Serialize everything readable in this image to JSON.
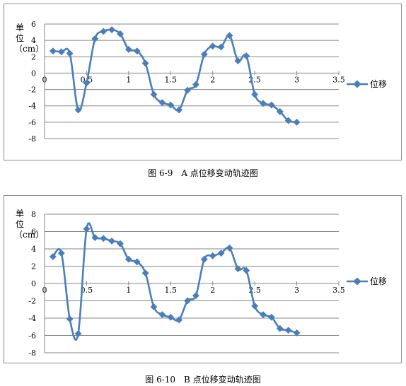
{
  "chart_data": [
    {
      "type": "line",
      "ylabel": "单位（cm）",
      "caption": "图 6-9　A 点位移变动轨迹图",
      "xlim": [
        0,
        3.5
      ],
      "ylim": [
        -8,
        6
      ],
      "xticks": [
        "0",
        "0.5",
        "1",
        "1.5",
        "2",
        "2.5",
        "3",
        "3.5"
      ],
      "yticks": [
        "6",
        "4",
        "2",
        "0",
        "-2",
        "-4",
        "-6",
        "-8"
      ],
      "series": [
        {
          "name": "位移",
          "color": "#4a7ebb",
          "x": [
            0.1,
            0.2,
            0.3,
            0.4,
            0.5,
            0.6,
            0.7,
            0.8,
            0.9,
            1.0,
            1.1,
            1.2,
            1.3,
            1.4,
            1.5,
            1.6,
            1.7,
            1.8,
            1.9,
            2.0,
            2.1,
            2.2,
            2.3,
            2.4,
            2.5,
            2.6,
            2.7,
            2.8,
            2.9,
            3.0
          ],
          "y": [
            2.7,
            2.6,
            2.4,
            -4.5,
            -1.2,
            4.2,
            5.1,
            5.3,
            4.8,
            2.9,
            2.7,
            1.2,
            -2.6,
            -3.6,
            -3.9,
            -4.5,
            -2.1,
            -1.4,
            2.3,
            3.3,
            3.2,
            4.6,
            1.5,
            2.1,
            -2.6,
            -3.7,
            -3.9,
            -4.7,
            -5.8,
            -6.0
          ]
        }
      ],
      "legend_position": "right",
      "grid": true
    },
    {
      "type": "line",
      "ylabel": "单位（cm）",
      "caption": "图 6-10　B 点位移变动轨迹图",
      "xlim": [
        0,
        3.5
      ],
      "ylim": [
        -8,
        8
      ],
      "xticks": [
        "0",
        "0.5",
        "1",
        "1.5",
        "2",
        "2.5",
        "3",
        "3.5"
      ],
      "yticks": [
        "8",
        "6",
        "4",
        "2",
        "0",
        "-2",
        "-4",
        "-6",
        "-8"
      ],
      "series": [
        {
          "name": "位移",
          "color": "#4a7ebb",
          "x": [
            0.1,
            0.2,
            0.3,
            0.4,
            0.5,
            0.6,
            0.7,
            0.8,
            0.9,
            1.0,
            1.1,
            1.2,
            1.3,
            1.4,
            1.5,
            1.6,
            1.7,
            1.8,
            1.9,
            2.0,
            2.1,
            2.2,
            2.3,
            2.4,
            2.5,
            2.6,
            2.7,
            2.8,
            2.9,
            3.0
          ],
          "y": [
            3.1,
            3.5,
            -4.1,
            -5.8,
            6.3,
            5.3,
            5.2,
            4.9,
            4.6,
            2.8,
            2.5,
            1.2,
            -2.7,
            -3.6,
            -3.9,
            -4.2,
            -2.0,
            -1.4,
            2.8,
            3.2,
            3.5,
            4.1,
            1.7,
            1.5,
            -2.6,
            -3.6,
            -3.9,
            -5.2,
            -5.4,
            -5.7
          ]
        }
      ],
      "legend_position": "right",
      "grid": true
    }
  ]
}
